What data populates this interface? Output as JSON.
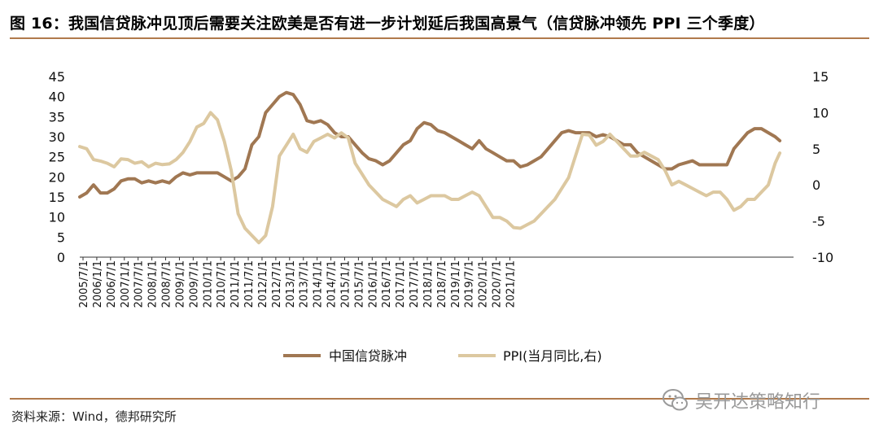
{
  "title": "图 16：我国信贷脉冲见顶后需要关注欧美是否有进一步计划延后我国高景气（信贷脉冲领先 PPI 三个季度）",
  "source": "资料来源：Wind，德邦研究所",
  "watermark": "吴开达策略知行",
  "colors": {
    "credit": "#a07752",
    "ppi": "#dcc8a0",
    "rule": "#b07a4c"
  },
  "chart_data": {
    "type": "line",
    "x_start": "2005-07",
    "x_end": "2021-06",
    "x_tick_labels": [
      "2005/7/1",
      "2006/1/1",
      "2006/7/1",
      "2007/1/1",
      "2007/7/1",
      "2008/1/1",
      "2008/7/1",
      "2009/1/1",
      "2009/7/1",
      "2010/1/1",
      "2010/7/1",
      "2011/1/1",
      "2011/7/1",
      "2012/1/1",
      "2012/7/1",
      "2013/1/1",
      "2013/7/1",
      "2014/1/1",
      "2014/7/1",
      "2015/1/1",
      "2015/7/1",
      "2016/1/1",
      "2016/7/1",
      "2017/1/1",
      "2017/7/1",
      "2018/1/1",
      "2018/7/1",
      "2019/1/1",
      "2019/7/1",
      "2020/1/1",
      "2020/7/1",
      "2021/1/1"
    ],
    "y_left": {
      "min": 0,
      "max": 45,
      "ticks": [
        "0",
        "5",
        "10",
        "15",
        "20",
        "25",
        "30",
        "35",
        "40",
        "45"
      ]
    },
    "y_right": {
      "min": -10,
      "max": 15,
      "ticks": [
        "-10",
        "-5",
        "0",
        "5",
        "10",
        "15"
      ]
    },
    "series": [
      {
        "name": "中国信贷脉冲",
        "axis": "left",
        "points": [
          [
            0,
            15
          ],
          [
            3,
            16
          ],
          [
            6,
            18
          ],
          [
            9,
            16
          ],
          [
            12,
            16
          ],
          [
            15,
            17
          ],
          [
            18,
            19
          ],
          [
            21,
            19.5
          ],
          [
            24,
            19.5
          ],
          [
            27,
            18.5
          ],
          [
            30,
            19
          ],
          [
            33,
            18.5
          ],
          [
            36,
            19
          ],
          [
            39,
            18.5
          ],
          [
            42,
            20
          ],
          [
            45,
            21
          ],
          [
            48,
            20.5
          ],
          [
            51,
            21
          ],
          [
            54,
            21
          ],
          [
            57,
            21
          ],
          [
            60,
            21
          ],
          [
            63,
            20
          ],
          [
            66,
            19
          ],
          [
            69,
            20
          ],
          [
            72,
            22
          ],
          [
            75,
            28
          ],
          [
            78,
            30
          ],
          [
            81,
            36
          ],
          [
            84,
            38
          ],
          [
            87,
            40
          ],
          [
            90,
            41
          ],
          [
            93,
            40.5
          ],
          [
            96,
            38
          ],
          [
            99,
            34
          ],
          [
            102,
            33.5
          ],
          [
            105,
            34
          ],
          [
            108,
            33
          ],
          [
            111,
            31
          ],
          [
            114,
            30
          ],
          [
            117,
            30
          ],
          [
            120,
            28
          ],
          [
            123,
            26
          ],
          [
            126,
            24.5
          ],
          [
            129,
            24
          ],
          [
            132,
            23
          ],
          [
            135,
            24
          ],
          [
            138,
            26
          ],
          [
            141,
            28
          ],
          [
            144,
            29
          ],
          [
            147,
            32
          ],
          [
            150,
            33.5
          ],
          [
            153,
            33
          ],
          [
            156,
            31.5
          ],
          [
            159,
            31
          ],
          [
            162,
            30
          ],
          [
            165,
            29
          ],
          [
            168,
            28
          ],
          [
            171,
            27
          ],
          [
            174,
            29
          ],
          [
            177,
            27
          ],
          [
            180,
            26
          ],
          [
            183,
            25
          ],
          [
            186,
            24
          ],
          [
            189,
            24
          ],
          [
            192,
            22.5
          ],
          [
            195,
            23
          ],
          [
            198,
            24
          ],
          [
            201,
            25
          ],
          [
            204,
            27
          ],
          [
            207,
            29
          ],
          [
            210,
            31
          ],
          [
            213,
            31.5
          ],
          [
            216,
            31
          ],
          [
            219,
            31
          ],
          [
            222,
            31
          ],
          [
            225,
            30
          ],
          [
            228,
            30.5
          ],
          [
            231,
            30
          ],
          [
            234,
            29
          ],
          [
            237,
            28
          ],
          [
            240,
            28
          ],
          [
            243,
            26
          ],
          [
            246,
            25
          ],
          [
            249,
            24
          ],
          [
            252,
            23
          ],
          [
            255,
            22
          ],
          [
            258,
            22
          ],
          [
            261,
            23
          ],
          [
            264,
            23.5
          ],
          [
            267,
            24
          ],
          [
            270,
            23
          ],
          [
            273,
            23
          ],
          [
            276,
            23
          ],
          [
            279,
            23
          ],
          [
            282,
            23
          ],
          [
            285,
            27
          ],
          [
            288,
            29
          ],
          [
            291,
            31
          ],
          [
            294,
            32
          ],
          [
            297,
            32
          ],
          [
            300,
            31
          ],
          [
            303,
            30
          ],
          [
            305,
            29
          ]
        ]
      },
      {
        "name": "PPI(当月同比,右)",
        "axis": "right",
        "points": [
          [
            0,
            5.3
          ],
          [
            3,
            5
          ],
          [
            6,
            3.5
          ],
          [
            9,
            3.3
          ],
          [
            12,
            3
          ],
          [
            15,
            2.5
          ],
          [
            18,
            3.6
          ],
          [
            21,
            3.5
          ],
          [
            24,
            3
          ],
          [
            27,
            3.2
          ],
          [
            30,
            2.5
          ],
          [
            33,
            3
          ],
          [
            36,
            2.8
          ],
          [
            39,
            2.9
          ],
          [
            42,
            3.5
          ],
          [
            45,
            4.5
          ],
          [
            48,
            6
          ],
          [
            51,
            8
          ],
          [
            54,
            8.5
          ],
          [
            57,
            10
          ],
          [
            60,
            9
          ],
          [
            63,
            6
          ],
          [
            66,
            2
          ],
          [
            69,
            -4
          ],
          [
            72,
            -6
          ],
          [
            75,
            -7
          ],
          [
            78,
            -8
          ],
          [
            81,
            -7
          ],
          [
            84,
            -3
          ],
          [
            87,
            4
          ],
          [
            90,
            5.5
          ],
          [
            93,
            7
          ],
          [
            96,
            5
          ],
          [
            99,
            4.5
          ],
          [
            102,
            6
          ],
          [
            105,
            6.5
          ],
          [
            108,
            7
          ],
          [
            111,
            6.5
          ],
          [
            114,
            7.2
          ],
          [
            117,
            6.5
          ],
          [
            120,
            3
          ],
          [
            123,
            1.5
          ],
          [
            126,
            0
          ],
          [
            129,
            -1
          ],
          [
            132,
            -2
          ],
          [
            135,
            -2.5
          ],
          [
            138,
            -3
          ],
          [
            141,
            -2
          ],
          [
            144,
            -1.5
          ],
          [
            147,
            -2.5
          ],
          [
            150,
            -2
          ],
          [
            153,
            -1.5
          ],
          [
            156,
            -1.5
          ],
          [
            159,
            -1.5
          ],
          [
            162,
            -2
          ],
          [
            165,
            -2
          ],
          [
            168,
            -1.5
          ],
          [
            171,
            -1
          ],
          [
            174,
            -1.5
          ],
          [
            177,
            -3
          ],
          [
            180,
            -4.5
          ],
          [
            183,
            -4.5
          ],
          [
            186,
            -5
          ],
          [
            189,
            -5.9
          ],
          [
            192,
            -6
          ],
          [
            195,
            -5.5
          ],
          [
            198,
            -5
          ],
          [
            201,
            -4
          ],
          [
            204,
            -3
          ],
          [
            207,
            -2
          ],
          [
            210,
            -0.5
          ],
          [
            213,
            1
          ],
          [
            216,
            4
          ],
          [
            219,
            7
          ],
          [
            222,
            6.9
          ],
          [
            225,
            5.5
          ],
          [
            228,
            6
          ],
          [
            231,
            7
          ],
          [
            234,
            6
          ],
          [
            237,
            5
          ],
          [
            240,
            4
          ],
          [
            243,
            4
          ],
          [
            246,
            4.5
          ],
          [
            249,
            4
          ],
          [
            252,
            3.5
          ],
          [
            255,
            2
          ],
          [
            258,
            0
          ],
          [
            261,
            0.5
          ],
          [
            264,
            0
          ],
          [
            267,
            -0.5
          ],
          [
            270,
            -1
          ],
          [
            273,
            -1.5
          ],
          [
            276,
            -1
          ],
          [
            279,
            -1
          ],
          [
            282,
            -2
          ],
          [
            285,
            -3.5
          ],
          [
            288,
            -3
          ],
          [
            291,
            -2
          ],
          [
            294,
            -2
          ],
          [
            297,
            -1
          ],
          [
            300,
            0
          ],
          [
            303,
            3
          ],
          [
            305,
            4.4
          ]
        ]
      }
    ]
  }
}
